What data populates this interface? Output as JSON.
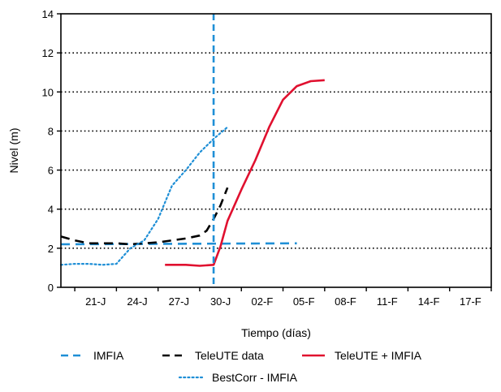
{
  "chart_data": {
    "type": "line",
    "xlabel": "Tiempo (días)",
    "ylabel": "Nivel (m)",
    "x_ticks": [
      "21-J",
      "24-J",
      "27-J",
      "30-J",
      "02-F",
      "05-F",
      "08-F",
      "11-F",
      "14-F",
      "17-F"
    ],
    "xlim": [
      "2019-01-18",
      "2019-02-18"
    ],
    "ylim": [
      0,
      14
    ],
    "y_ticks": [
      0,
      2,
      4,
      6,
      8,
      10,
      12,
      14
    ],
    "grid": "horizontal dotted",
    "legend": "bottom",
    "vertical_marker_x": "2019-01-29",
    "series": [
      {
        "name": "IMFIA",
        "style": "dashed",
        "color": "#1f8fd6",
        "points": [
          [
            "2019-01-18",
            2.2
          ],
          [
            "2019-02-04",
            2.25
          ]
        ]
      },
      {
        "name": "TeleUTE data",
        "style": "dashed",
        "color": "#000000",
        "points": [
          [
            "2019-01-18",
            2.6
          ],
          [
            "2019-01-19",
            2.4
          ],
          [
            "2019-01-20",
            2.25
          ],
          [
            "2019-01-22",
            2.25
          ],
          [
            "2019-01-23",
            2.2
          ],
          [
            "2019-01-24",
            2.25
          ],
          [
            "2019-01-25",
            2.3
          ],
          [
            "2019-01-26",
            2.4
          ],
          [
            "2019-01-27",
            2.5
          ],
          [
            "2019-01-28",
            2.65
          ],
          [
            "2019-01-28T12:00",
            2.9
          ],
          [
            "2019-01-29",
            3.5
          ],
          [
            "2019-01-29T12:00",
            4.2
          ],
          [
            "2019-01-30",
            5.1
          ]
        ]
      },
      {
        "name": "TeleUTE + IMFIA",
        "style": "solid",
        "color": "#e0102f",
        "points": [
          [
            "2019-01-25T12:00",
            1.15
          ],
          [
            "2019-01-27",
            1.15
          ],
          [
            "2019-01-28",
            1.1
          ],
          [
            "2019-01-29",
            1.15
          ],
          [
            "2019-01-29T12:00",
            2.1
          ],
          [
            "2019-01-30",
            3.4
          ],
          [
            "2019-01-31",
            5.0
          ],
          [
            "2019-02-01",
            6.5
          ],
          [
            "2019-02-02",
            8.2
          ],
          [
            "2019-02-03",
            9.6
          ],
          [
            "2019-02-04",
            10.3
          ],
          [
            "2019-02-05",
            10.55
          ],
          [
            "2019-02-06",
            10.6
          ]
        ]
      },
      {
        "name": "BestCorr - IMFIA",
        "style": "dotted",
        "color": "#1f8fd6",
        "points": [
          [
            "2019-01-18",
            1.15
          ],
          [
            "2019-01-19",
            1.2
          ],
          [
            "2019-01-20",
            1.2
          ],
          [
            "2019-01-21",
            1.15
          ],
          [
            "2019-01-22",
            1.2
          ],
          [
            "2019-01-23",
            2.0
          ],
          [
            "2019-01-24",
            2.4
          ],
          [
            "2019-01-25",
            3.5
          ],
          [
            "2019-01-26",
            5.2
          ],
          [
            "2019-01-27",
            6.0
          ],
          [
            "2019-01-28",
            6.9
          ],
          [
            "2019-01-29",
            7.6
          ],
          [
            "2019-01-30",
            8.2
          ]
        ]
      }
    ]
  }
}
